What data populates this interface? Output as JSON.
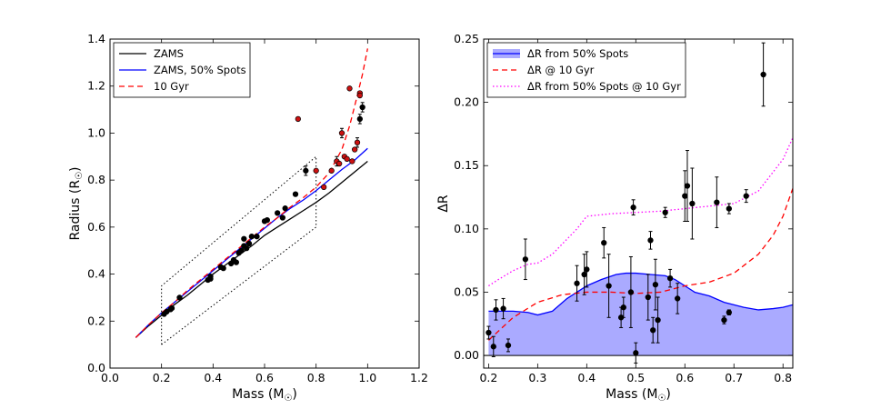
{
  "chart_data": [
    {
      "type": "line",
      "xlabel": "Mass (M",
      "xlabel_sub": "☉",
      "xlabel_close": ")",
      "ylabel": "Radius (R",
      "ylabel_sub": "☉",
      "ylabel_close": ")",
      "xlim": [
        0.0,
        1.2
      ],
      "ylim": [
        0.0,
        1.4
      ],
      "xticks": [
        "0.0",
        "0.2",
        "0.4",
        "0.6",
        "0.8",
        "1.0",
        "1.2"
      ],
      "xtick_values": [
        0.0,
        0.2,
        0.4,
        0.6,
        0.8,
        1.0,
        1.2
      ],
      "yticks": [
        "0.0",
        "0.2",
        "0.4",
        "0.6",
        "0.8",
        "1.0",
        "1.2",
        "1.4"
      ],
      "ytick_values": [
        0.0,
        0.2,
        0.4,
        0.6,
        0.8,
        1.0,
        1.2,
        1.4
      ],
      "legend_position": "top-left",
      "series": [
        {
          "name": "ZAMS",
          "color": "#000000",
          "style": "solid",
          "x": [
            0.1,
            0.15,
            0.2,
            0.25,
            0.3,
            0.35,
            0.4,
            0.45,
            0.5,
            0.55,
            0.6,
            0.65,
            0.7,
            0.75,
            0.8,
            0.85,
            0.9,
            0.95,
            1.0
          ],
          "y": [
            0.13,
            0.18,
            0.225,
            0.27,
            0.31,
            0.355,
            0.4,
            0.44,
            0.48,
            0.52,
            0.565,
            0.6,
            0.635,
            0.67,
            0.705,
            0.745,
            0.79,
            0.835,
            0.88
          ]
        },
        {
          "name": "ZAMS, 50% Spots",
          "color": "#0000ff",
          "style": "solid",
          "x": [
            0.1,
            0.15,
            0.2,
            0.25,
            0.3,
            0.35,
            0.4,
            0.45,
            0.5,
            0.55,
            0.6,
            0.65,
            0.7,
            0.75,
            0.8,
            0.85,
            0.9,
            0.95,
            1.0
          ],
          "y": [
            0.13,
            0.185,
            0.235,
            0.28,
            0.325,
            0.37,
            0.415,
            0.46,
            0.505,
            0.55,
            0.595,
            0.64,
            0.68,
            0.715,
            0.755,
            0.8,
            0.845,
            0.885,
            0.935
          ]
        },
        {
          "name": "10 Gyr",
          "color": "#ff0000",
          "style": "dashed",
          "x": [
            0.1,
            0.15,
            0.2,
            0.25,
            0.3,
            0.35,
            0.4,
            0.45,
            0.5,
            0.55,
            0.6,
            0.65,
            0.7,
            0.75,
            0.8,
            0.85,
            0.9,
            0.93,
            0.96,
            0.98,
            1.0
          ],
          "y": [
            0.13,
            0.185,
            0.235,
            0.28,
            0.33,
            0.375,
            0.42,
            0.465,
            0.51,
            0.555,
            0.6,
            0.64,
            0.685,
            0.725,
            0.77,
            0.83,
            0.93,
            1.03,
            1.16,
            1.25,
            1.36
          ]
        }
      ],
      "box_region": {
        "style": "dotted",
        "points": [
          [
            0.2,
            0.1
          ],
          [
            0.2,
            0.35
          ],
          [
            0.8,
            0.9
          ],
          [
            0.8,
            0.6
          ],
          [
            0.2,
            0.1
          ]
        ]
      },
      "points_black": [
        {
          "x": 0.21,
          "y": 0.23
        },
        {
          "x": 0.22,
          "y": 0.24
        },
        {
          "x": 0.235,
          "y": 0.25
        },
        {
          "x": 0.24,
          "y": 0.255
        },
        {
          "x": 0.27,
          "y": 0.3
        },
        {
          "x": 0.38,
          "y": 0.375
        },
        {
          "x": 0.39,
          "y": 0.39
        },
        {
          "x": 0.43,
          "y": 0.43
        },
        {
          "x": 0.44,
          "y": 0.425
        },
        {
          "x": 0.47,
          "y": 0.445
        },
        {
          "x": 0.48,
          "y": 0.46
        },
        {
          "x": 0.49,
          "y": 0.45
        },
        {
          "x": 0.5,
          "y": 0.49
        },
        {
          "x": 0.51,
          "y": 0.5
        },
        {
          "x": 0.52,
          "y": 0.52
        },
        {
          "x": 0.53,
          "y": 0.51
        },
        {
          "x": 0.54,
          "y": 0.53
        },
        {
          "x": 0.55,
          "y": 0.56
        },
        {
          "x": 0.57,
          "y": 0.56
        },
        {
          "x": 0.6,
          "y": 0.625
        },
        {
          "x": 0.61,
          "y": 0.63
        },
        {
          "x": 0.67,
          "y": 0.64
        },
        {
          "x": 0.68,
          "y": 0.68
        },
        {
          "x": 0.72,
          "y": 0.74
        },
        {
          "x": 0.76,
          "y": 0.84,
          "err": 0.02
        },
        {
          "x": 0.97,
          "y": 1.06,
          "err": 0.02
        },
        {
          "x": 0.98,
          "y": 1.11,
          "err": 0.02
        },
        {
          "x": 0.39,
          "y": 0.38
        },
        {
          "x": 0.52,
          "y": 0.55
        },
        {
          "x": 0.65,
          "y": 0.66
        }
      ],
      "points_red": [
        {
          "x": 0.73,
          "y": 1.06
        },
        {
          "x": 0.8,
          "y": 0.84
        },
        {
          "x": 0.83,
          "y": 0.77
        },
        {
          "x": 0.86,
          "y": 0.84
        },
        {
          "x": 0.88,
          "y": 0.88,
          "err": 0.02
        },
        {
          "x": 0.89,
          "y": 0.87
        },
        {
          "x": 0.9,
          "y": 1.0,
          "err": 0.02
        },
        {
          "x": 0.91,
          "y": 0.9
        },
        {
          "x": 0.92,
          "y": 0.89
        },
        {
          "x": 0.93,
          "y": 1.19
        },
        {
          "x": 0.94,
          "y": 0.88
        },
        {
          "x": 0.96,
          "y": 0.96,
          "err": 0.02
        },
        {
          "x": 0.97,
          "y": 1.17
        },
        {
          "x": 0.97,
          "y": 1.16
        },
        {
          "x": 0.95,
          "y": 0.93
        }
      ]
    },
    {
      "type": "line",
      "xlabel": "Mass (M",
      "xlabel_sub": "☉",
      "xlabel_close": ")",
      "ylabel": "ΔR",
      "xlim": [
        0.19,
        0.82
      ],
      "ylim": [
        -0.01,
        0.25
      ],
      "xticks": [
        "0.2",
        "0.3",
        "0.4",
        "0.5",
        "0.6",
        "0.7",
        "0.8"
      ],
      "xtick_values": [
        0.2,
        0.3,
        0.4,
        0.5,
        0.6,
        0.7,
        0.8
      ],
      "yticks": [
        "0.00",
        "0.05",
        "0.10",
        "0.15",
        "0.20",
        "0.25"
      ],
      "ytick_values": [
        0.0,
        0.05,
        0.1,
        0.15,
        0.2,
        0.25
      ],
      "legend_position": "top-left",
      "series": [
        {
          "name": "ΔR from 50% Spots",
          "color": "#0000ff",
          "style": "solid",
          "fill": "#aaaaff",
          "x": [
            0.2,
            0.25,
            0.28,
            0.3,
            0.33,
            0.36,
            0.4,
            0.43,
            0.46,
            0.48,
            0.5,
            0.53,
            0.56,
            0.58,
            0.6,
            0.62,
            0.65,
            0.68,
            0.7,
            0.72,
            0.75,
            0.78,
            0.8,
            0.82
          ],
          "y": [
            0.035,
            0.035,
            0.034,
            0.032,
            0.035,
            0.045,
            0.055,
            0.06,
            0.064,
            0.065,
            0.065,
            0.064,
            0.063,
            0.06,
            0.055,
            0.05,
            0.047,
            0.042,
            0.04,
            0.038,
            0.036,
            0.037,
            0.038,
            0.04
          ]
        },
        {
          "name": "ΔR @ 10 Gyr",
          "color": "#ff0000",
          "style": "dashed",
          "x": [
            0.2,
            0.25,
            0.3,
            0.35,
            0.4,
            0.45,
            0.5,
            0.55,
            0.6,
            0.65,
            0.7,
            0.75,
            0.78,
            0.8,
            0.82
          ],
          "y": [
            0.012,
            0.03,
            0.042,
            0.048,
            0.05,
            0.05,
            0.049,
            0.05,
            0.055,
            0.058,
            0.065,
            0.08,
            0.095,
            0.11,
            0.132
          ]
        },
        {
          "name": "ΔR from 50% Spots @ 10 Gyr",
          "color": "#ff00ff",
          "style": "dotted",
          "x": [
            0.2,
            0.22,
            0.25,
            0.28,
            0.3,
            0.33,
            0.36,
            0.38,
            0.4,
            0.45,
            0.5,
            0.55,
            0.6,
            0.65,
            0.7,
            0.75,
            0.78,
            0.8,
            0.82
          ],
          "y": [
            0.055,
            0.06,
            0.067,
            0.072,
            0.073,
            0.08,
            0.092,
            0.1,
            0.11,
            0.112,
            0.113,
            0.114,
            0.116,
            0.118,
            0.12,
            0.13,
            0.145,
            0.155,
            0.172
          ]
        }
      ],
      "points": [
        {
          "x": 0.2,
          "y": 0.018,
          "err": 0.005
        },
        {
          "x": 0.21,
          "y": 0.007,
          "err": 0.008
        },
        {
          "x": 0.215,
          "y": 0.036,
          "err": 0.008
        },
        {
          "x": 0.23,
          "y": 0.037,
          "err": 0.008
        },
        {
          "x": 0.24,
          "y": 0.008,
          "err": 0.005
        },
        {
          "x": 0.275,
          "y": 0.076,
          "err": 0.016
        },
        {
          "x": 0.38,
          "y": 0.057,
          "err": 0.014
        },
        {
          "x": 0.395,
          "y": 0.064,
          "err": 0.016
        },
        {
          "x": 0.4,
          "y": 0.068,
          "err": 0.014
        },
        {
          "x": 0.435,
          "y": 0.089,
          "err": 0.012
        },
        {
          "x": 0.445,
          "y": 0.055,
          "err": 0.025
        },
        {
          "x": 0.47,
          "y": 0.03,
          "err": 0.008
        },
        {
          "x": 0.475,
          "y": 0.038,
          "err": 0.008
        },
        {
          "x": 0.49,
          "y": 0.05,
          "err": 0.028
        },
        {
          "x": 0.495,
          "y": 0.117,
          "err": 0.006
        },
        {
          "x": 0.5,
          "y": 0.002,
          "err": 0.008
        },
        {
          "x": 0.525,
          "y": 0.046,
          "err": 0.018
        },
        {
          "x": 0.53,
          "y": 0.091,
          "err": 0.007
        },
        {
          "x": 0.535,
          "y": 0.02,
          "err": 0.01
        },
        {
          "x": 0.54,
          "y": 0.056,
          "err": 0.02
        },
        {
          "x": 0.545,
          "y": 0.028,
          "err": 0.018
        },
        {
          "x": 0.56,
          "y": 0.113,
          "err": 0.004
        },
        {
          "x": 0.57,
          "y": 0.061,
          "err": 0.007
        },
        {
          "x": 0.585,
          "y": 0.045,
          "err": 0.012
        },
        {
          "x": 0.6,
          "y": 0.126,
          "err": 0.02
        },
        {
          "x": 0.605,
          "y": 0.134,
          "err": 0.028
        },
        {
          "x": 0.615,
          "y": 0.12,
          "err": 0.028
        },
        {
          "x": 0.665,
          "y": 0.121,
          "err": 0.02
        },
        {
          "x": 0.68,
          "y": 0.028,
          "err": 0.003
        },
        {
          "x": 0.69,
          "y": 0.116,
          "err": 0.004
        },
        {
          "x": 0.69,
          "y": 0.034,
          "err": 0.002
        },
        {
          "x": 0.725,
          "y": 0.126,
          "err": 0.005
        },
        {
          "x": 0.76,
          "y": 0.222,
          "err": 0.025
        }
      ]
    }
  ]
}
